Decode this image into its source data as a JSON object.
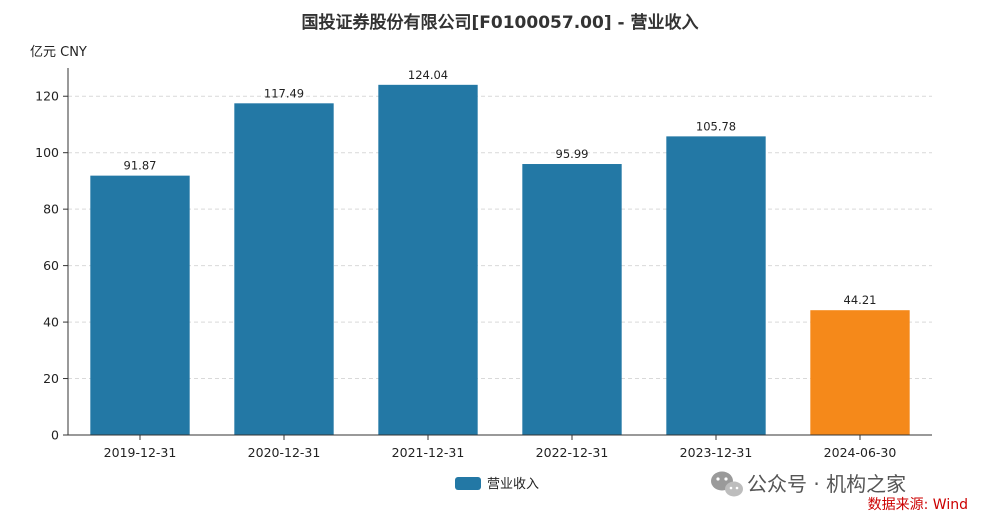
{
  "chart_data": {
    "type": "bar",
    "title": "国投证券股份有限公司[F0100057.00] - 营业收入",
    "unit_label": "亿元  CNY",
    "categories": [
      "2019-12-31",
      "2020-12-31",
      "2021-12-31",
      "2022-12-31",
      "2023-12-31",
      "2024-06-30"
    ],
    "series": [
      {
        "name": "营业收入",
        "values": [
          91.87,
          117.49,
          124.04,
          95.99,
          105.78,
          44.21
        ],
        "value_labels": [
          "91.87",
          "117.49",
          "124.04",
          "95.99",
          "105.78",
          "44.21"
        ]
      }
    ],
    "highlight_index": 5,
    "ylim": [
      0,
      130
    ],
    "yticks": [
      0,
      20,
      40,
      60,
      80,
      100,
      120
    ],
    "grid": true,
    "legend_position": "bottom-center",
    "colors": {
      "bar": "#2378a5",
      "highlight": "#f5891a",
      "grid": "#d9d9d9",
      "axis": "#333333"
    }
  },
  "watermark": {
    "text": "公众号 · 机构之家",
    "icon": "wechat-icon"
  },
  "source": "数据来源: Wind"
}
